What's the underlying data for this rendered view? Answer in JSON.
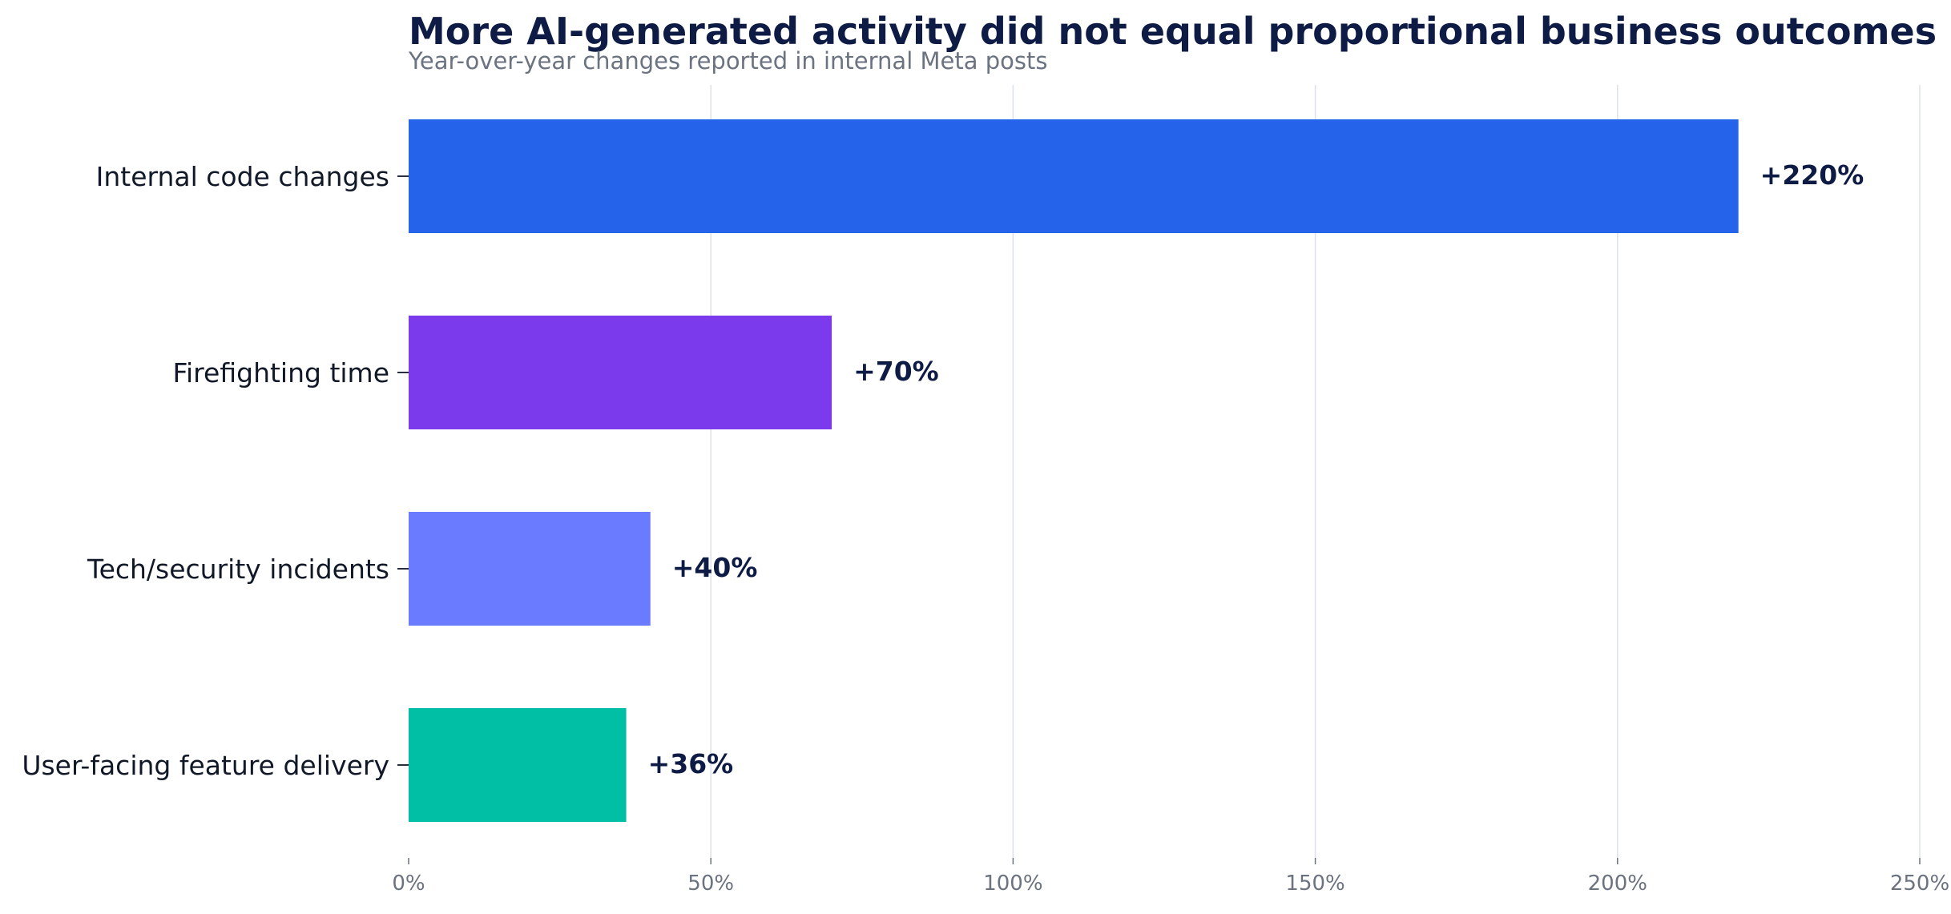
{
  "chart_data": {
    "type": "bar",
    "orientation": "horizontal",
    "title": "More AI-generated activity did not equal proportional business outcomes",
    "subtitle": "Year-over-year changes reported in internal Meta posts",
    "categories": [
      "Internal code changes",
      "Firefighting time",
      "Tech/security incidents",
      "User-facing feature delivery"
    ],
    "values": [
      220,
      70,
      40,
      36
    ],
    "data_labels": [
      "+220%",
      "+70%",
      "+40%",
      "+36%"
    ],
    "bar_colors": [
      "#2563eb",
      "#7c3aed",
      "#6b7bff",
      "#00bfa5"
    ],
    "xlim": [
      0,
      250
    ],
    "xticks": [
      0,
      50,
      100,
      150,
      200,
      250
    ],
    "xtick_labels": [
      "0%",
      "50%",
      "100%",
      "150%",
      "200%",
      "250%"
    ],
    "grid": "vertical",
    "legend": "none",
    "title_color": "#0d1b45",
    "subtitle_color": "#6b7280",
    "label_color": "#111827",
    "tick_color": "#6b7280",
    "grid_color": "#dde1ee"
  }
}
